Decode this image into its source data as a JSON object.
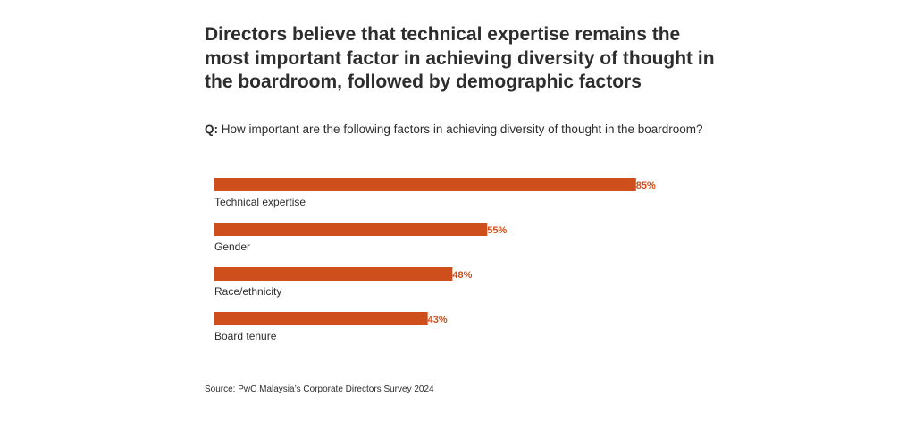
{
  "title": "Directors believe that technical expertise remains the\nmost important factor in achieving diversity of thought in\nthe boardroom, followed by demographic factors",
  "question": {
    "prefix": "Q:",
    "text": " How important are the following factors in achieving diversity of thought in the boardroom?"
  },
  "source": "Source: PwC Malaysia’s Corporate Directors Survey 2024",
  "colors": {
    "bar": "#cf4f1c",
    "value_label": "#cf4f1c",
    "text": "#2d2d2d"
  },
  "chart_data": {
    "type": "bar",
    "orientation": "horizontal",
    "categories": [
      "Technical expertise",
      "Gender",
      "Race/ethnicity",
      "Board tenure"
    ],
    "values": [
      85,
      55,
      48,
      43
    ],
    "value_labels": [
      "85%",
      "55%",
      "48%",
      "43%"
    ],
    "unit": "%",
    "xlim": [
      0,
      100
    ],
    "grid": false,
    "legend": "none",
    "title": "",
    "xlabel": "",
    "ylabel": ""
  }
}
